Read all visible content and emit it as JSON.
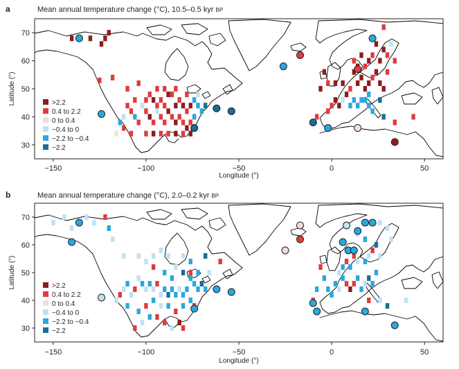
{
  "colors": {
    "gt_2_2": "#8c1c1f",
    "p04_22": "#e03b3f",
    "p0_04": "#f6dcd8",
    "n04_0": "#bfe2f3",
    "n22_04": "#29a8e0",
    "lt_n22": "#1b6d95"
  },
  "chart_data": [
    {
      "panel_label": "a",
      "type": "heatmap",
      "title": "Mean annual temperature change (°C), 10.5–0.5 kyr",
      "title_suffix": "BP",
      "xlabel": "Longitude (°)",
      "ylabel": "Latitude (°)",
      "xlim": [
        -160,
        60
      ],
      "ylim": [
        25,
        75
      ],
      "xticks": [
        -150,
        -100,
        -50,
        0,
        50
      ],
      "yticks": [
        30,
        40,
        50,
        60,
        70
      ],
      "grid": false,
      "legend_position": "bottom-left",
      "legend": [
        {
          "label": ">2.2",
          "cls": "gt_2_2"
        },
        {
          "label": "0.4 to 2.2",
          "cls": "p04_22"
        },
        {
          "label": "0 to 0.4",
          "cls": "p0_04"
        },
        {
          "label": "−0.4 to 0",
          "cls": "n04_0"
        },
        {
          "label": "−2.2 to −0.4",
          "cls": "n22_04"
        },
        {
          "label": "−2.2",
          "cls": "lt_n22"
        }
      ],
      "cell_size_deg": 2,
      "cells": [
        [
          -140,
          68,
          "gt_2_2"
        ],
        [
          -130,
          68,
          "gt_2_2"
        ],
        [
          -122,
          68,
          "gt_2_2"
        ],
        [
          -120,
          70,
          "gt_2_2"
        ],
        [
          -124,
          66,
          "gt_2_2"
        ],
        [
          -125,
          53,
          "p04_22"
        ],
        [
          -118,
          54,
          "p04_22"
        ],
        [
          -110,
          50,
          "p04_22"
        ],
        [
          -104,
          52,
          "p04_22"
        ],
        [
          -98,
          48,
          "p04_22"
        ],
        [
          -96,
          46,
          "gt_2_2"
        ],
        [
          -94,
          44,
          "p04_22"
        ],
        [
          -92,
          46,
          "p04_22"
        ],
        [
          -90,
          44,
          "p04_22"
        ],
        [
          -88,
          42,
          "gt_2_2"
        ],
        [
          -86,
          48,
          "p04_22"
        ],
        [
          -84,
          44,
          "gt_2_2"
        ],
        [
          -82,
          46,
          "p04_22"
        ],
        [
          -80,
          44,
          "gt_2_2"
        ],
        [
          -78,
          42,
          "p04_22"
        ],
        [
          -76,
          44,
          "gt_2_2"
        ],
        [
          -74,
          46,
          "n22_04"
        ],
        [
          -72,
          44,
          "n22_04"
        ],
        [
          -70,
          42,
          "n22_04"
        ],
        [
          -68,
          44,
          "lt_n22"
        ],
        [
          -86,
          40,
          "p04_22"
        ],
        [
          -84,
          38,
          "gt_2_2"
        ],
        [
          -82,
          40,
          "p04_22"
        ],
        [
          -80,
          38,
          "p04_22"
        ],
        [
          -78,
          36,
          "gt_2_2"
        ],
        [
          -76,
          38,
          "p04_22"
        ],
        [
          -74,
          40,
          "n22_04"
        ],
        [
          -90,
          38,
          "p04_22"
        ],
        [
          -92,
          40,
          "p04_22"
        ],
        [
          -94,
          42,
          "n04_0"
        ],
        [
          -96,
          38,
          "p04_22"
        ],
        [
          -98,
          40,
          "gt_2_2"
        ],
        [
          -100,
          42,
          "p04_22"
        ],
        [
          -102,
          44,
          "n04_0"
        ],
        [
          -104,
          38,
          "p04_22"
        ],
        [
          -106,
          40,
          "n22_04"
        ],
        [
          -108,
          42,
          "p04_22"
        ],
        [
          -110,
          44,
          "p04_22"
        ],
        [
          -112,
          40,
          "n04_0"
        ],
        [
          -114,
          38,
          "n22_04"
        ],
        [
          -112,
          36,
          "p04_22"
        ],
        [
          -116,
          34,
          "p0_04"
        ],
        [
          -108,
          34,
          "p04_22"
        ],
        [
          -100,
          34,
          "p04_22"
        ],
        [
          -96,
          34,
          "gt_2_2"
        ],
        [
          -92,
          34,
          "p04_22"
        ],
        [
          -88,
          34,
          "p04_22"
        ],
        [
          -84,
          34,
          "gt_2_2"
        ],
        [
          -80,
          34,
          "p04_22"
        ],
        [
          -76,
          34,
          "gt_2_2"
        ],
        [
          -88,
          48,
          "gt_2_2"
        ],
        [
          -90,
          50,
          "p04_22"
        ],
        [
          -94,
          50,
          "p04_22"
        ],
        [
          -84,
          50,
          "p04_22"
        ],
        [
          -78,
          48,
          "p04_22"
        ],
        [
          -72,
          48,
          "n04_0"
        ],
        [
          -100,
          46,
          "p04_22"
        ],
        [
          -106,
          46,
          "p04_22"
        ],
        [
          -4,
          56,
          "gt_2_2"
        ],
        [
          -2,
          52,
          "p04_22"
        ],
        [
          -6,
          50,
          "gt_2_2"
        ],
        [
          2,
          52,
          "gt_2_2"
        ],
        [
          6,
          52,
          "gt_2_2"
        ],
        [
          8,
          48,
          "gt_2_2"
        ],
        [
          10,
          50,
          "p04_22"
        ],
        [
          14,
          52,
          "gt_2_2"
        ],
        [
          16,
          54,
          "gt_2_2"
        ],
        [
          18,
          50,
          "gt_2_2"
        ],
        [
          20,
          52,
          "gt_2_2"
        ],
        [
          22,
          54,
          "p04_22"
        ],
        [
          24,
          56,
          "gt_2_2"
        ],
        [
          26,
          52,
          "gt_2_2"
        ],
        [
          28,
          50,
          "gt_2_2"
        ],
        [
          30,
          56,
          "p04_22"
        ],
        [
          18,
          58,
          "p04_22"
        ],
        [
          20,
          60,
          "gt_2_2"
        ],
        [
          22,
          62,
          "p04_22"
        ],
        [
          26,
          60,
          "gt_2_2"
        ],
        [
          28,
          64,
          "gt_2_2"
        ],
        [
          30,
          62,
          "p04_22"
        ],
        [
          28,
          72,
          "p04_22"
        ],
        [
          24,
          66,
          "gt_2_2"
        ],
        [
          12,
          60,
          "p04_22"
        ],
        [
          16,
          62,
          "gt_2_2"
        ],
        [
          32,
          66,
          "n04_0"
        ],
        [
          34,
          60,
          "p04_22"
        ],
        [
          12,
          56,
          "gt_2_2"
        ],
        [
          14,
          58,
          "gt_2_2"
        ],
        [
          16,
          46,
          "n22_04"
        ],
        [
          18,
          46,
          "n22_04"
        ],
        [
          20,
          44,
          "n22_04"
        ],
        [
          22,
          42,
          "n22_04"
        ],
        [
          14,
          44,
          "n22_04"
        ],
        [
          12,
          46,
          "n22_04"
        ],
        [
          10,
          44,
          "n22_04"
        ],
        [
          20,
          48,
          "n22_04"
        ],
        [
          6,
          46,
          "n04_0"
        ],
        [
          4,
          44,
          "gt_2_2"
        ],
        [
          2,
          46,
          "gt_2_2"
        ],
        [
          0,
          44,
          "p04_22"
        ],
        [
          -2,
          42,
          "p04_22"
        ],
        [
          -8,
          40,
          "p04_22"
        ],
        [
          28,
          40,
          "lt_n22"
        ],
        [
          34,
          38,
          "p04_22"
        ],
        [
          44,
          40,
          "p04_22"
        ],
        [
          26,
          46,
          "lt_n22"
        ]
      ],
      "sites": [
        [
          -136,
          68,
          "n22_04"
        ],
        [
          -124,
          41,
          "n22_04"
        ],
        [
          -74,
          36,
          "lt_n22"
        ],
        [
          -62,
          43,
          "lt_n22"
        ],
        [
          -54,
          42,
          "lt_n22"
        ],
        [
          -26,
          58,
          "n22_04"
        ],
        [
          -17,
          62,
          "p04_22"
        ],
        [
          -10,
          38,
          "lt_n22"
        ],
        [
          -2,
          36,
          "n22_04"
        ],
        [
          14,
          36,
          "p0_04"
        ],
        [
          14,
          57,
          "p04_22"
        ],
        [
          22,
          68,
          "n22_04"
        ],
        [
          34,
          31,
          "gt_2_2"
        ]
      ]
    },
    {
      "panel_label": "b",
      "type": "heatmap",
      "title": "Mean annual temperature change (°C), 2.0–0.2 kyr",
      "title_suffix": "BP",
      "xlabel": "Longitude (°)",
      "ylabel": "Latitude (°)",
      "xlim": [
        -160,
        60
      ],
      "ylim": [
        25,
        75
      ],
      "xticks": [
        -150,
        -100,
        -50,
        0,
        50
      ],
      "yticks": [
        30,
        40,
        50,
        60,
        70
      ],
      "grid": false,
      "legend_position": "bottom-left",
      "legend": [
        {
          "label": ">2.2",
          "cls": "gt_2_2"
        },
        {
          "label": "0.4 to 2.2",
          "cls": "p04_22"
        },
        {
          "label": "0 to 0.4",
          "cls": "p0_04"
        },
        {
          "label": "−0.4 to 0",
          "cls": "n04_0"
        },
        {
          "label": "−2.2 to −0.4",
          "cls": "n22_04"
        },
        {
          "label": "−2.2",
          "cls": "lt_n22"
        }
      ],
      "cell_size_deg": 2,
      "cells": [
        [
          -150,
          68,
          "n04_0"
        ],
        [
          -144,
          70,
          "n04_0"
        ],
        [
          -140,
          66,
          "n04_0"
        ],
        [
          -132,
          70,
          "n04_0"
        ],
        [
          -128,
          68,
          "n04_0"
        ],
        [
          -122,
          70,
          "p04_22"
        ],
        [
          -120,
          66,
          "n22_04"
        ],
        [
          -118,
          62,
          "n04_0"
        ],
        [
          -112,
          56,
          "n04_0"
        ],
        [
          -104,
          56,
          "n04_0"
        ],
        [
          -100,
          54,
          "n04_0"
        ],
        [
          -96,
          56,
          "n04_0"
        ],
        [
          -92,
          58,
          "n04_0"
        ],
        [
          -88,
          56,
          "n04_0"
        ],
        [
          -80,
          56,
          "n04_0"
        ],
        [
          -76,
          54,
          "n22_04"
        ],
        [
          -68,
          56,
          "lt_n22"
        ],
        [
          -60,
          54,
          "p04_22"
        ],
        [
          -96,
          52,
          "p04_22"
        ],
        [
          -90,
          50,
          "n22_04"
        ],
        [
          -86,
          48,
          "n22_04"
        ],
        [
          -84,
          52,
          "n04_0"
        ],
        [
          -80,
          50,
          "lt_n22"
        ],
        [
          -76,
          48,
          "n22_04"
        ],
        [
          -74,
          46,
          "n22_04"
        ],
        [
          -72,
          44,
          "n22_04"
        ],
        [
          -70,
          46,
          "lt_n22"
        ],
        [
          -68,
          44,
          "n22_04"
        ],
        [
          -78,
          44,
          "n22_04"
        ],
        [
          -80,
          42,
          "n22_04"
        ],
        [
          -82,
          44,
          "n04_0"
        ],
        [
          -84,
          42,
          "n22_04"
        ],
        [
          -86,
          44,
          "n22_04"
        ],
        [
          -88,
          42,
          "lt_n22"
        ],
        [
          -90,
          44,
          "n22_04"
        ],
        [
          -92,
          42,
          "n04_0"
        ],
        [
          -94,
          46,
          "p04_22"
        ],
        [
          -96,
          44,
          "n04_0"
        ],
        [
          -98,
          46,
          "n22_04"
        ],
        [
          -100,
          44,
          "n04_0"
        ],
        [
          -102,
          46,
          "n22_04"
        ],
        [
          -104,
          48,
          "n04_0"
        ],
        [
          -106,
          44,
          "p04_22"
        ],
        [
          -108,
          42,
          "n04_0"
        ],
        [
          -110,
          46,
          "n22_04"
        ],
        [
          -112,
          44,
          "n04_0"
        ],
        [
          -114,
          42,
          "p04_22"
        ],
        [
          -116,
          40,
          "n04_0"
        ],
        [
          -110,
          38,
          "n22_04"
        ],
        [
          -104,
          36,
          "n22_04"
        ],
        [
          -100,
          38,
          "p04_22"
        ],
        [
          -96,
          40,
          "n22_04"
        ],
        [
          -92,
          38,
          "n04_0"
        ],
        [
          -88,
          38,
          "n22_04"
        ],
        [
          -84,
          36,
          "p04_22"
        ],
        [
          -80,
          38,
          "n22_04"
        ],
        [
          -76,
          40,
          "n22_04"
        ],
        [
          -82,
          32,
          "gt_2_2"
        ],
        [
          -80,
          30,
          "p04_22"
        ],
        [
          -86,
          30,
          "n04_0"
        ],
        [
          -90,
          32,
          "p04_22"
        ],
        [
          -94,
          34,
          "p04_22"
        ],
        [
          -98,
          34,
          "n22_04"
        ],
        [
          -102,
          32,
          "n04_0"
        ],
        [
          -106,
          30,
          "p04_22"
        ],
        [
          -74,
          38,
          "p04_22"
        ],
        [
          -76,
          50,
          "p04_22"
        ],
        [
          -72,
          50,
          "n22_04"
        ],
        [
          -66,
          50,
          "n04_0"
        ],
        [
          -2,
          44,
          "n22_04"
        ],
        [
          0,
          42,
          "n22_04"
        ],
        [
          2,
          46,
          "n22_04"
        ],
        [
          4,
          44,
          "n04_0"
        ],
        [
          6,
          48,
          "n22_04"
        ],
        [
          8,
          46,
          "p04_22"
        ],
        [
          10,
          44,
          "gt_2_2"
        ],
        [
          12,
          46,
          "p04_22"
        ],
        [
          14,
          48,
          "n22_04"
        ],
        [
          16,
          44,
          "n22_04"
        ],
        [
          18,
          46,
          "n04_0"
        ],
        [
          20,
          48,
          "lt_n22"
        ],
        [
          22,
          46,
          "n22_04"
        ],
        [
          24,
          50,
          "n22_04"
        ],
        [
          4,
          50,
          "n04_0"
        ],
        [
          6,
          52,
          "n22_04"
        ],
        [
          8,
          54,
          "p04_22"
        ],
        [
          10,
          52,
          "n22_04"
        ],
        [
          12,
          56,
          "p04_22"
        ],
        [
          14,
          54,
          "n04_0"
        ],
        [
          18,
          54,
          "n22_04"
        ],
        [
          20,
          56,
          "n04_0"
        ],
        [
          22,
          58,
          "p04_22"
        ],
        [
          26,
          56,
          "n04_0"
        ],
        [
          24,
          60,
          "lt_n22"
        ],
        [
          18,
          62,
          "n22_04"
        ],
        [
          14,
          64,
          "n04_0"
        ],
        [
          20,
          68,
          "n04_0"
        ],
        [
          26,
          68,
          "n04_0"
        ],
        [
          30,
          66,
          "n04_0"
        ],
        [
          32,
          62,
          "n04_0"
        ],
        [
          -6,
          52,
          "p04_22"
        ],
        [
          -4,
          48,
          "n22_04"
        ],
        [
          -8,
          44,
          "n22_04"
        ],
        [
          -10,
          40,
          "p04_22"
        ],
        [
          26,
          40,
          "n04_0"
        ],
        [
          30,
          38,
          "lt_n22"
        ],
        [
          40,
          40,
          "n04_0"
        ],
        [
          20,
          40,
          "p04_22"
        ]
      ],
      "sites": [
        [
          -136,
          68,
          "n22_04"
        ],
        [
          -140,
          61,
          "n22_04"
        ],
        [
          -124,
          41,
          "n04_0"
        ],
        [
          -74,
          37,
          "n22_04"
        ],
        [
          -62,
          44,
          "n22_04"
        ],
        [
          -54,
          43,
          "n22_04"
        ],
        [
          -25,
          58,
          "p0_04"
        ],
        [
          -17,
          62,
          "p04_22"
        ],
        [
          -17,
          67,
          "p0_04"
        ],
        [
          -10,
          39,
          "n22_04"
        ],
        [
          -8,
          36,
          "n22_04"
        ],
        [
          6,
          61,
          "n22_04"
        ],
        [
          9,
          58,
          "n22_04"
        ],
        [
          12,
          58,
          "n22_04"
        ],
        [
          14,
          65,
          "n22_04"
        ],
        [
          8,
          67,
          "n04_0"
        ],
        [
          18,
          68,
          "n22_04"
        ],
        [
          22,
          68,
          "n22_04"
        ],
        [
          18,
          36,
          "n22_04"
        ],
        [
          34,
          31,
          "n22_04"
        ]
      ]
    }
  ]
}
